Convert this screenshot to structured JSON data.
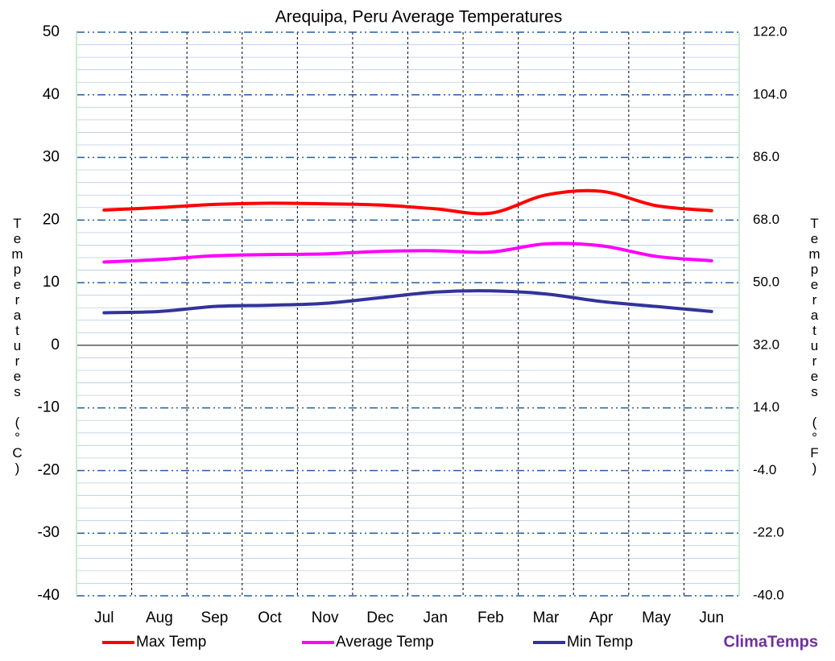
{
  "chart_data": {
    "type": "line",
    "title": "Arequipa, Peru Average Temperatures",
    "y_label": "Temperatures (°C)",
    "y2_label": "Temperatures (°F)",
    "brand": "ClimaTemps",
    "categories": [
      "Jul",
      "Aug",
      "Sep",
      "Oct",
      "Nov",
      "Dec",
      "Jan",
      "Feb",
      "Mar",
      "Apr",
      "May",
      "Jun"
    ],
    "series": [
      {
        "name": "Max Temp",
        "color": "#ff0000",
        "values": [
          21.6,
          22.0,
          22.5,
          22.7,
          22.6,
          22.4,
          21.8,
          21.1,
          24.0,
          24.6,
          22.3,
          21.5
        ]
      },
      {
        "name": "Average Temp",
        "color": "#ff00ff",
        "values": [
          13.3,
          13.7,
          14.3,
          14.5,
          14.6,
          15.0,
          15.1,
          14.9,
          16.2,
          15.9,
          14.2,
          13.5
        ]
      },
      {
        "name": "Min Temp",
        "color": "#333399",
        "values": [
          5.2,
          5.4,
          6.2,
          6.4,
          6.7,
          7.6,
          8.5,
          8.7,
          8.2,
          7.0,
          6.2,
          5.4
        ]
      }
    ],
    "ylim": [
      -40,
      50
    ],
    "yticks": [
      -40,
      -30,
      -20,
      -10,
      0,
      10,
      20,
      30,
      40,
      50
    ],
    "y2lim": [
      -40,
      122
    ],
    "y2ticks": [
      {
        "value": -40,
        "label": "-40.0"
      },
      {
        "value": -22,
        "label": "-22.0"
      },
      {
        "value": -4,
        "label": "-4.0"
      },
      {
        "value": 14,
        "label": "14.0"
      },
      {
        "value": 32,
        "label": "32.0"
      },
      {
        "value": 50,
        "label": "50.0"
      },
      {
        "value": 68,
        "label": "68.0"
      },
      {
        "value": 86,
        "label": "86.0"
      },
      {
        "value": 104,
        "label": "104.0"
      },
      {
        "value": 122,
        "label": "122.0"
      }
    ],
    "grid": true,
    "minor_grid": true,
    "legend": "bottom"
  }
}
